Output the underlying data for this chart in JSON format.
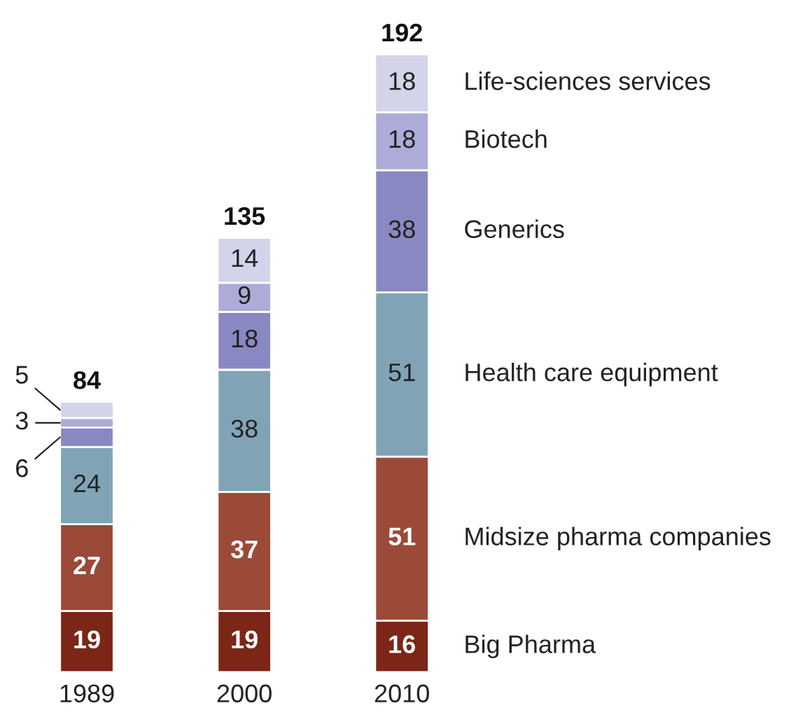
{
  "chart_data": {
    "type": "bar",
    "stacked": true,
    "data_labels": true,
    "categories": [
      "1989",
      "2000",
      "2010"
    ],
    "series": [
      {
        "name": "Big Pharma",
        "color": "#7b2617",
        "values": [
          19,
          19,
          16
        ]
      },
      {
        "name": "Midsize pharma companies",
        "color": "#9a4a37",
        "values": [
          27,
          37,
          51
        ]
      },
      {
        "name": "Health care equipment",
        "color": "#80a4b6",
        "values": [
          24,
          38,
          51
        ]
      },
      {
        "name": "Generics",
        "color": "#8a88c2",
        "values": [
          6,
          18,
          38
        ]
      },
      {
        "name": "Biotech",
        "color": "#adabd8",
        "values": [
          3,
          9,
          18
        ]
      },
      {
        "name": "Life-sciences services",
        "color": "#d3d3ea",
        "values": [
          5,
          14,
          18
        ]
      }
    ],
    "totals": [
      "84",
      "135",
      "192"
    ]
  }
}
